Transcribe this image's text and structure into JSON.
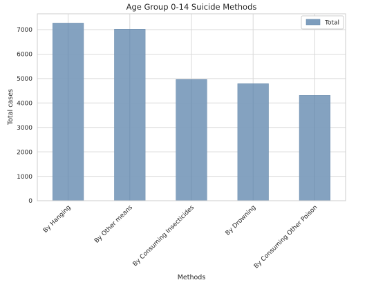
{
  "chart_data": {
    "type": "bar",
    "title": "Age Group 0-14 Suicide Methods",
    "xlabel": "Methods",
    "ylabel": "Total cases",
    "categories": [
      "By Hanging",
      "By Other means",
      "By Consuming Insecticides",
      "By Drowning",
      "By Consuming Other Poison"
    ],
    "series": [
      {
        "name": "Total",
        "values": [
          7270,
          7020,
          4960,
          4790,
          4310
        ]
      }
    ],
    "ylim": [
      0,
      7650
    ],
    "yticks": [
      0,
      1000,
      2000,
      3000,
      4000,
      5000,
      6000,
      7000
    ],
    "grid": true,
    "legend_position": "top-right",
    "colors": {
      "bar": "#7d9dbd",
      "bar_edge": "#6e8fb0",
      "grid": "#d9d9d9",
      "axes_edge": "#cccccc"
    }
  }
}
